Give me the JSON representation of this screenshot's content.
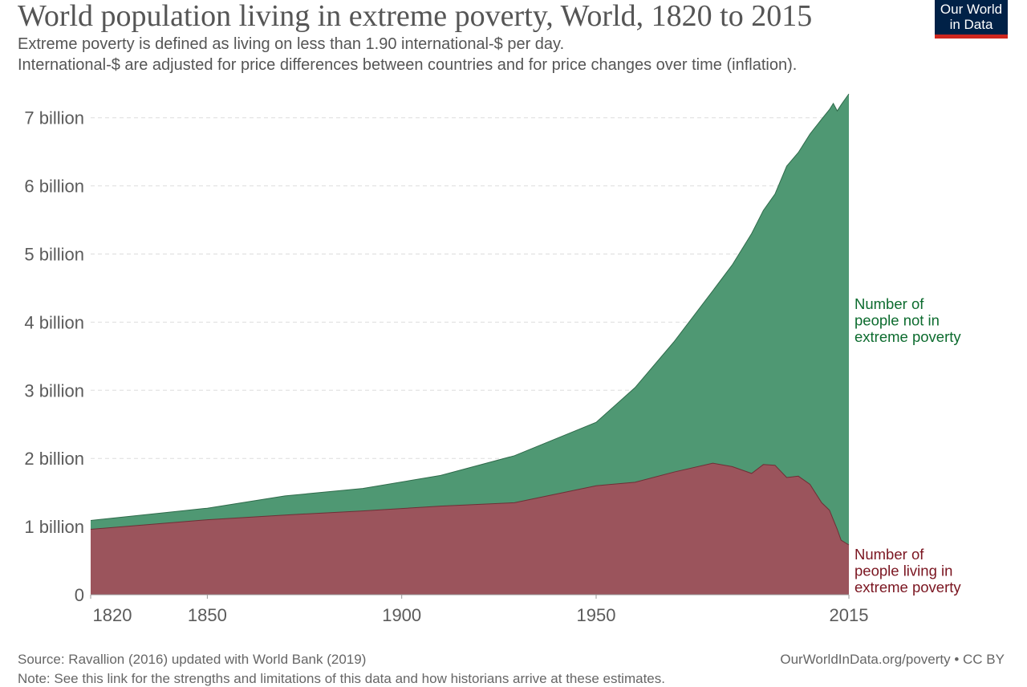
{
  "header": {
    "title": "World population living in extreme poverty, World, 1820 to 2015",
    "subtitle_1": "Extreme poverty is defined as living on less than 1.90 international-$ per day.",
    "subtitle_2": "International-$ are adjusted for price differences between countries and for price changes over time (inflation).",
    "logo_line_1": "Our World",
    "logo_line_2": "in Data"
  },
  "footer": {
    "source": "Source: Ravallion (2016) updated with World Bank (2019)",
    "credit": "OurWorldInData.org/poverty • CC BY",
    "note": "Note: See this link for the strengths and limitations of this data and how historians arrive at these estimates."
  },
  "colors": {
    "not_poor_fill": "#4f9873",
    "not_poor_label": "#0c6b2e",
    "poor_fill": "#9b545c",
    "poor_label": "#7a1520",
    "grid": "#dddddd",
    "axis_text": "#5b5b5b",
    "logo_bg": "#002147",
    "logo_accent": "#ce261e"
  },
  "chart_data": {
    "type": "area",
    "stacked": true,
    "title": "World population living in extreme poverty, World, 1820 to 2015",
    "xlabel": "",
    "ylabel": "",
    "xlim": [
      1820,
      2015
    ],
    "ylim": [
      0,
      7.35
    ],
    "grid": true,
    "legend_placement": "right-end labels",
    "y_ticks": [
      {
        "value": 0,
        "label": "0"
      },
      {
        "value": 1,
        "label": "1 billion"
      },
      {
        "value": 2,
        "label": "2 billion"
      },
      {
        "value": 3,
        "label": "3 billion"
      },
      {
        "value": 4,
        "label": "4 billion"
      },
      {
        "value": 5,
        "label": "5 billion"
      },
      {
        "value": 6,
        "label": "6 billion"
      },
      {
        "value": 7,
        "label": "7 billion"
      }
    ],
    "x_ticks": [
      {
        "value": 1820,
        "label": "1820"
      },
      {
        "value": 1850,
        "label": "1850"
      },
      {
        "value": 1900,
        "label": "1900"
      },
      {
        "value": 1950,
        "label": "1950"
      },
      {
        "value": 2015,
        "label": "2015"
      }
    ],
    "years": [
      1820,
      1850,
      1870,
      1890,
      1910,
      1929,
      1950,
      1960,
      1970,
      1980,
      1985,
      1990,
      1993,
      1996,
      1999,
      2002,
      2005,
      2008,
      2010,
      2011,
      2012,
      2013,
      2015
    ],
    "series": [
      {
        "name": "Number of people living in extreme poverty",
        "label_lines": [
          "Number of",
          "people living in",
          "extreme poverty"
        ],
        "values": [
          0.96,
          1.1,
          1.17,
          1.23,
          1.3,
          1.35,
          1.6,
          1.65,
          1.8,
          1.93,
          1.88,
          1.78,
          1.91,
          1.9,
          1.72,
          1.74,
          1.62,
          1.35,
          1.24,
          1.1,
          0.96,
          0.8,
          0.73
        ]
      },
      {
        "name": "Number of people not in extreme poverty",
        "label_lines": [
          "Number of",
          "people not in",
          "extreme poverty"
        ],
        "values": [
          0.13,
          0.17,
          0.28,
          0.33,
          0.45,
          0.69,
          0.93,
          1.39,
          1.91,
          2.53,
          2.96,
          3.52,
          3.73,
          3.98,
          4.57,
          4.75,
          5.14,
          5.63,
          5.88,
          6.11,
          6.14,
          6.39,
          6.62
        ]
      }
    ]
  }
}
